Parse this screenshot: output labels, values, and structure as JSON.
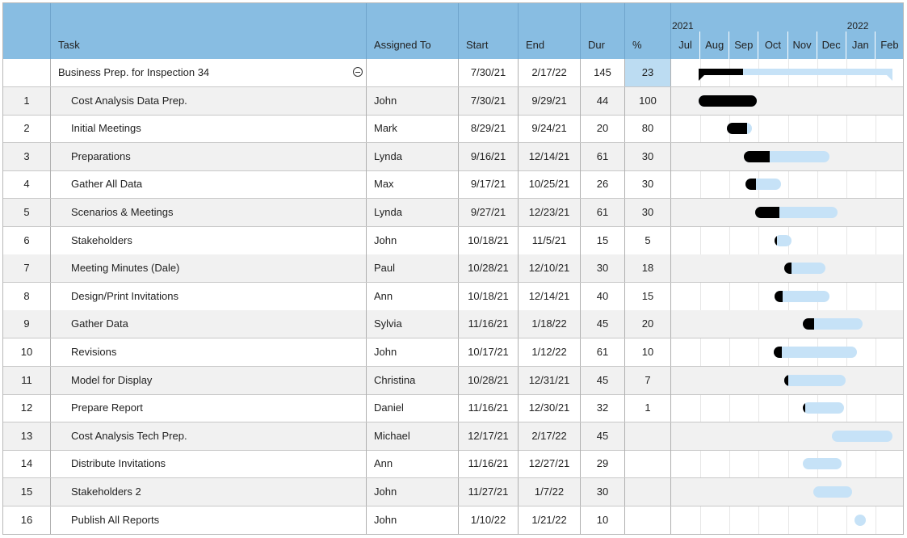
{
  "columns": {
    "id": "",
    "task": "Task",
    "assigned": "Assigned To",
    "start": "Start",
    "end": "End",
    "dur": "Dur",
    "pct": "%"
  },
  "timeline": {
    "years": [
      {
        "label": "2021",
        "month_index": 0
      },
      {
        "label": "2022",
        "month_index": 6
      }
    ],
    "months": [
      "Jul",
      "Aug",
      "Sep",
      "Oct",
      "Nov",
      "Dec",
      "Jan",
      "Feb"
    ],
    "start_month": "2021-07",
    "month_count": 8
  },
  "colors": {
    "header_bg": "#88bde2",
    "bar_remaining": "#c6e2f7",
    "bar_done": "#000000",
    "row_alt": "#f1f1f1",
    "pct_highlight": "#bcdcf2"
  },
  "summary": {
    "task": "Business Prep. for Inspection 34",
    "assigned": "",
    "start": "7/30/21",
    "end": "2/17/22",
    "dur": "145",
    "pct": "23",
    "start_date": "2021-07-30",
    "end_date": "2022-02-17",
    "progress": 0.23,
    "collapse_icon": "collapse-minus-icon"
  },
  "tasks": [
    {
      "id": "1",
      "task": "Cost Analysis Data Prep.",
      "assigned": "John",
      "start": "7/30/21",
      "end": "9/29/21",
      "dur": "44",
      "pct": "100",
      "start_date": "2021-07-30",
      "end_date": "2021-09-29",
      "progress": 1.0
    },
    {
      "id": "2",
      "task": "Initial Meetings",
      "assigned": "Mark",
      "start": "8/29/21",
      "end": "9/24/21",
      "dur": "20",
      "pct": "80",
      "start_date": "2021-08-29",
      "end_date": "2021-09-24",
      "progress": 0.8
    },
    {
      "id": "3",
      "task": "Preparations",
      "assigned": "Lynda",
      "start": "9/16/21",
      "end": "12/14/21",
      "dur": "61",
      "pct": "30",
      "start_date": "2021-09-16",
      "end_date": "2021-12-14",
      "progress": 0.3
    },
    {
      "id": "4",
      "task": "Gather All Data",
      "assigned": "Max",
      "start": "9/17/21",
      "end": "10/25/21",
      "dur": "26",
      "pct": "30",
      "start_date": "2021-09-17",
      "end_date": "2021-10-25",
      "progress": 0.3
    },
    {
      "id": "5",
      "task": "Scenarios & Meetings",
      "assigned": "Lynda",
      "start": "9/27/21",
      "end": "12/23/21",
      "dur": "61",
      "pct": "30",
      "start_date": "2021-09-27",
      "end_date": "2021-12-23",
      "progress": 0.3
    },
    {
      "id": "6",
      "task": "Stakeholders",
      "assigned": "John",
      "start": "10/18/21",
      "end": "11/5/21",
      "dur": "15",
      "pct": "5",
      "start_date": "2021-10-18",
      "end_date": "2021-11-05",
      "progress": 0.05
    },
    {
      "id": "7",
      "task": "Meeting Minutes (Dale)",
      "assigned": "Paul",
      "start": "10/28/21",
      "end": "12/10/21",
      "dur": "30",
      "pct": "18",
      "start_date": "2021-10-28",
      "end_date": "2021-12-10",
      "progress": 0.18
    },
    {
      "id": "8",
      "task": "Design/Print Invitations",
      "assigned": "Ann",
      "start": "10/18/21",
      "end": "12/14/21",
      "dur": "40",
      "pct": "15",
      "start_date": "2021-10-18",
      "end_date": "2021-12-14",
      "progress": 0.15
    },
    {
      "id": "9",
      "task": "Gather Data",
      "assigned": "Sylvia",
      "start": "11/16/21",
      "end": "1/18/22",
      "dur": "45",
      "pct": "20",
      "start_date": "2021-11-16",
      "end_date": "2022-01-18",
      "progress": 0.2
    },
    {
      "id": "10",
      "task": "Revisions",
      "assigned": "John",
      "start": "10/17/21",
      "end": "1/12/22",
      "dur": "61",
      "pct": "10",
      "start_date": "2021-10-17",
      "end_date": "2022-01-12",
      "progress": 0.1
    },
    {
      "id": "11",
      "task": "Model for Display",
      "assigned": "Christina",
      "start": "10/28/21",
      "end": "12/31/21",
      "dur": "45",
      "pct": "7",
      "start_date": "2021-10-28",
      "end_date": "2021-12-31",
      "progress": 0.07
    },
    {
      "id": "12",
      "task": "Prepare Report",
      "assigned": "Daniel",
      "start": "11/16/21",
      "end": "12/30/21",
      "dur": "32",
      "pct": "1",
      "start_date": "2021-11-16",
      "end_date": "2021-12-30",
      "progress": 0.01
    },
    {
      "id": "13",
      "task": "Cost Analysis Tech Prep.",
      "assigned": "Michael",
      "start": "12/17/21",
      "end": "2/17/22",
      "dur": "45",
      "pct": "",
      "start_date": "2021-12-17",
      "end_date": "2022-02-17",
      "progress": 0
    },
    {
      "id": "14",
      "task": "Distribute Invitations",
      "assigned": "Ann",
      "start": "11/16/21",
      "end": "12/27/21",
      "dur": "29",
      "pct": "",
      "start_date": "2021-11-16",
      "end_date": "2021-12-27",
      "progress": 0
    },
    {
      "id": "15",
      "task": "Stakeholders 2",
      "assigned": "John",
      "start": "11/27/21",
      "end": "1/7/22",
      "dur": "30",
      "pct": "",
      "start_date": "2021-11-27",
      "end_date": "2022-01-07",
      "progress": 0
    },
    {
      "id": "16",
      "task": "Publish All Reports",
      "assigned": "John",
      "start": "1/10/22",
      "end": "1/21/22",
      "dur": "10",
      "pct": "",
      "start_date": "2022-01-10",
      "end_date": "2022-01-21",
      "progress": 0
    }
  ]
}
